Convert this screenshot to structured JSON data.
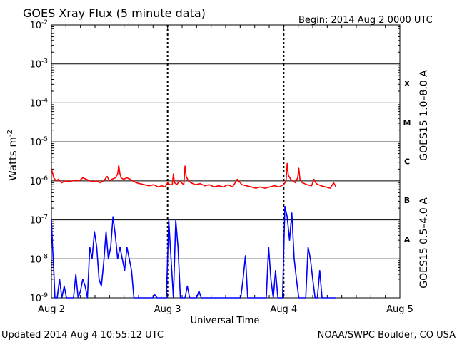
{
  "header": {
    "title": "GOES Xray Flux (5 minute data)",
    "begin": "Begin:  2014 Aug 2 0000 UTC"
  },
  "footer": {
    "updated": "Updated 2014 Aug  4 10:55:12 UTC",
    "credit": "NOAA/SWPC Boulder, CO USA"
  },
  "chart_data": {
    "type": "line",
    "title": "GOES Xray Flux (5 minute data)",
    "xlabel": "Universal Time",
    "ylabel_base": "Watts m",
    "ylabel_exp": "-2",
    "y_scale": "log",
    "ylim": [
      1e-09,
      0.01
    ],
    "xlim": [
      0,
      3
    ],
    "x_unit": "days since 2014 Aug 2 0000 UTC",
    "x_ticks": [
      {
        "value": 0,
        "label": "Aug 2"
      },
      {
        "value": 1,
        "label": "Aug 3"
      },
      {
        "value": 2,
        "label": "Aug 4"
      },
      {
        "value": 3,
        "label": "Aug 5"
      }
    ],
    "y_ticks": [
      {
        "exp": -9,
        "label": "10",
        "sup": "-9"
      },
      {
        "exp": -8,
        "label": "10",
        "sup": "-8"
      },
      {
        "exp": -7,
        "label": "10",
        "sup": "-7"
      },
      {
        "exp": -6,
        "label": "10",
        "sup": "-6"
      },
      {
        "exp": -5,
        "label": "10",
        "sup": "-5"
      },
      {
        "exp": -4,
        "label": "10",
        "sup": "-4"
      },
      {
        "exp": -3,
        "label": "10",
        "sup": "-3"
      },
      {
        "exp": -2,
        "label": "10",
        "sup": "-2"
      }
    ],
    "flare_classes": [
      {
        "label": "A",
        "exp": -7.5
      },
      {
        "label": "B",
        "exp": -6.5
      },
      {
        "label": "C",
        "exp": -5.5
      },
      {
        "label": "M",
        "exp": -4.5
      },
      {
        "label": "X",
        "exp": -3.5
      }
    ],
    "grid": true,
    "series": [
      {
        "name": "GOES15 1.0–8.0 A",
        "color": "#ff0000",
        "x": [
          0.0,
          0.01,
          0.02,
          0.04,
          0.06,
          0.09,
          0.12,
          0.15,
          0.18,
          0.21,
          0.24,
          0.27,
          0.3,
          0.33,
          0.36,
          0.39,
          0.42,
          0.45,
          0.48,
          0.5,
          0.52,
          0.55,
          0.57,
          0.58,
          0.59,
          0.6,
          0.62,
          0.65,
          0.68,
          0.7,
          0.73,
          0.76,
          0.8,
          0.84,
          0.88,
          0.92,
          0.95,
          0.98,
          1.0,
          1.02,
          1.04,
          1.05,
          1.06,
          1.08,
          1.1,
          1.12,
          1.14,
          1.15,
          1.16,
          1.18,
          1.2,
          1.24,
          1.28,
          1.32,
          1.36,
          1.4,
          1.44,
          1.48,
          1.52,
          1.56,
          1.6,
          1.64,
          1.68,
          1.72,
          1.76,
          1.8,
          1.84,
          1.88,
          1.92,
          1.96,
          2.0,
          2.02,
          2.03,
          2.04,
          2.06,
          2.08,
          2.1,
          2.12,
          2.13,
          2.14,
          2.16,
          2.2,
          2.24,
          2.26,
          2.28,
          2.32,
          2.36,
          2.4,
          2.43,
          2.45
        ],
        "y": [
          2e-06,
          1.6e-06,
          1.2e-06,
          1e-06,
          1.1e-06,
          9e-07,
          1e-06,
          9.5e-07,
          1e-06,
          1.05e-06,
          1e-06,
          1.2e-06,
          1.1e-06,
          1e-06,
          9.5e-07,
          1e-06,
          9e-07,
          1e-06,
          1.3e-06,
          1e-06,
          1.1e-06,
          1.2e-06,
          1.5e-06,
          2.5e-06,
          1.5e-06,
          1.2e-06,
          1.1e-06,
          1.2e-06,
          1.1e-06,
          1e-06,
          9e-07,
          8.5e-07,
          8e-07,
          7.5e-07,
          8e-07,
          7e-07,
          7.5e-07,
          7e-07,
          9e-07,
          8e-07,
          8e-07,
          1.5e-06,
          9e-07,
          8e-07,
          1e-06,
          9e-07,
          8e-07,
          2.4e-06,
          1.3e-06,
          1e-06,
          9e-07,
          8e-07,
          8.5e-07,
          7.5e-07,
          8e-07,
          7e-07,
          7.5e-07,
          7e-07,
          8e-07,
          7e-07,
          1.1e-06,
          8e-07,
          7.5e-07,
          7e-07,
          6.5e-07,
          7e-07,
          6.5e-07,
          7e-07,
          7.5e-07,
          7e-07,
          8e-07,
          1e-06,
          2.8e-06,
          1.4e-06,
          1.1e-06,
          1e-06,
          9e-07,
          1.2e-06,
          2.1e-06,
          1.1e-06,
          9e-07,
          8e-07,
          7.5e-07,
          1.1e-06,
          8.5e-07,
          7.5e-07,
          7e-07,
          6.5e-07,
          9e-07,
          7e-07
        ]
      },
      {
        "name": "GOES15 0.5–4.0 A",
        "color": "#0000ff",
        "x": [
          0.0,
          0.01,
          0.02,
          0.03,
          0.05,
          0.07,
          0.09,
          0.11,
          0.13,
          0.15,
          0.17,
          0.19,
          0.21,
          0.23,
          0.25,
          0.27,
          0.29,
          0.31,
          0.33,
          0.35,
          0.37,
          0.39,
          0.41,
          0.43,
          0.45,
          0.47,
          0.49,
          0.51,
          0.53,
          0.55,
          0.57,
          0.59,
          0.61,
          0.63,
          0.65,
          0.67,
          0.69,
          0.71,
          0.73,
          0.75,
          0.77,
          0.79,
          0.81,
          0.83,
          0.85,
          0.87,
          0.89,
          0.91,
          0.93,
          0.95,
          0.97,
          0.99,
          1.01,
          1.03,
          1.05,
          1.07,
          1.09,
          1.11,
          1.13,
          1.15,
          1.17,
          1.19,
          1.21,
          1.23,
          1.25,
          1.27,
          1.29,
          1.31,
          1.33,
          1.35,
          1.37,
          1.39,
          1.41,
          1.43,
          1.45,
          1.47,
          1.49,
          1.51,
          1.53,
          1.55,
          1.57,
          1.59,
          1.61,
          1.63,
          1.65,
          1.67,
          1.69,
          1.71,
          1.73,
          1.75,
          1.77,
          1.79,
          1.81,
          1.83,
          1.85,
          1.87,
          1.89,
          1.91,
          1.93,
          1.95,
          1.97,
          1.99,
          2.01,
          2.03,
          2.05,
          2.07,
          2.09,
          2.11,
          2.13,
          2.15,
          2.17,
          2.19,
          2.21,
          2.23,
          2.25,
          2.27,
          2.29,
          2.31,
          2.33,
          2.35,
          2.37,
          2.39,
          2.41,
          2.43,
          2.45
        ],
        "y": [
          1e-07,
          2e-08,
          5e-09,
          1e-09,
          1e-09,
          3e-09,
          1e-09,
          2e-09,
          1e-09,
          1e-09,
          1e-09,
          1e-09,
          4e-09,
          1e-09,
          1.5e-09,
          3e-09,
          2e-09,
          1e-09,
          2e-08,
          1e-08,
          5e-08,
          2e-08,
          3e-09,
          2e-09,
          8e-09,
          5e-08,
          1e-08,
          2e-08,
          1.2e-07,
          4e-08,
          1e-08,
          2e-08,
          1e-08,
          5e-09,
          2e-08,
          1e-08,
          5e-09,
          1e-09,
          1e-09,
          1e-09,
          1e-09,
          1e-09,
          1e-09,
          1e-09,
          1e-09,
          1e-09,
          1.2e-09,
          1e-09,
          1e-09,
          1e-09,
          1e-09,
          1e-09,
          1e-07,
          1e-08,
          1e-09,
          1e-07,
          2e-08,
          1e-09,
          1e-09,
          1e-09,
          2e-09,
          1e-09,
          1e-09,
          1e-09,
          1e-09,
          1.5e-09,
          1e-09,
          1e-09,
          1e-09,
          1e-09,
          1e-09,
          1e-09,
          1e-09,
          1e-09,
          1e-09,
          1e-09,
          1e-09,
          1e-09,
          1e-09,
          1e-09,
          1e-09,
          1e-09,
          1e-09,
          1e-09,
          3e-09,
          1.2e-08,
          1e-09,
          1e-09,
          1e-09,
          1e-09,
          1e-09,
          1e-09,
          1e-09,
          1e-09,
          1e-09,
          2e-08,
          3e-09,
          1e-09,
          5e-09,
          1e-09,
          1e-09,
          1e-09,
          2.2e-07,
          1.2e-07,
          3e-08,
          1.5e-07,
          1e-08,
          3e-09,
          1e-09,
          1e-09,
          1e-09,
          1e-09,
          2e-08,
          1e-08,
          3e-09,
          1e-09,
          1e-09,
          5e-09,
          1e-09,
          1e-09,
          1e-09,
          1e-09,
          1e-09,
          1e-09,
          1e-09
        ]
      }
    ]
  }
}
